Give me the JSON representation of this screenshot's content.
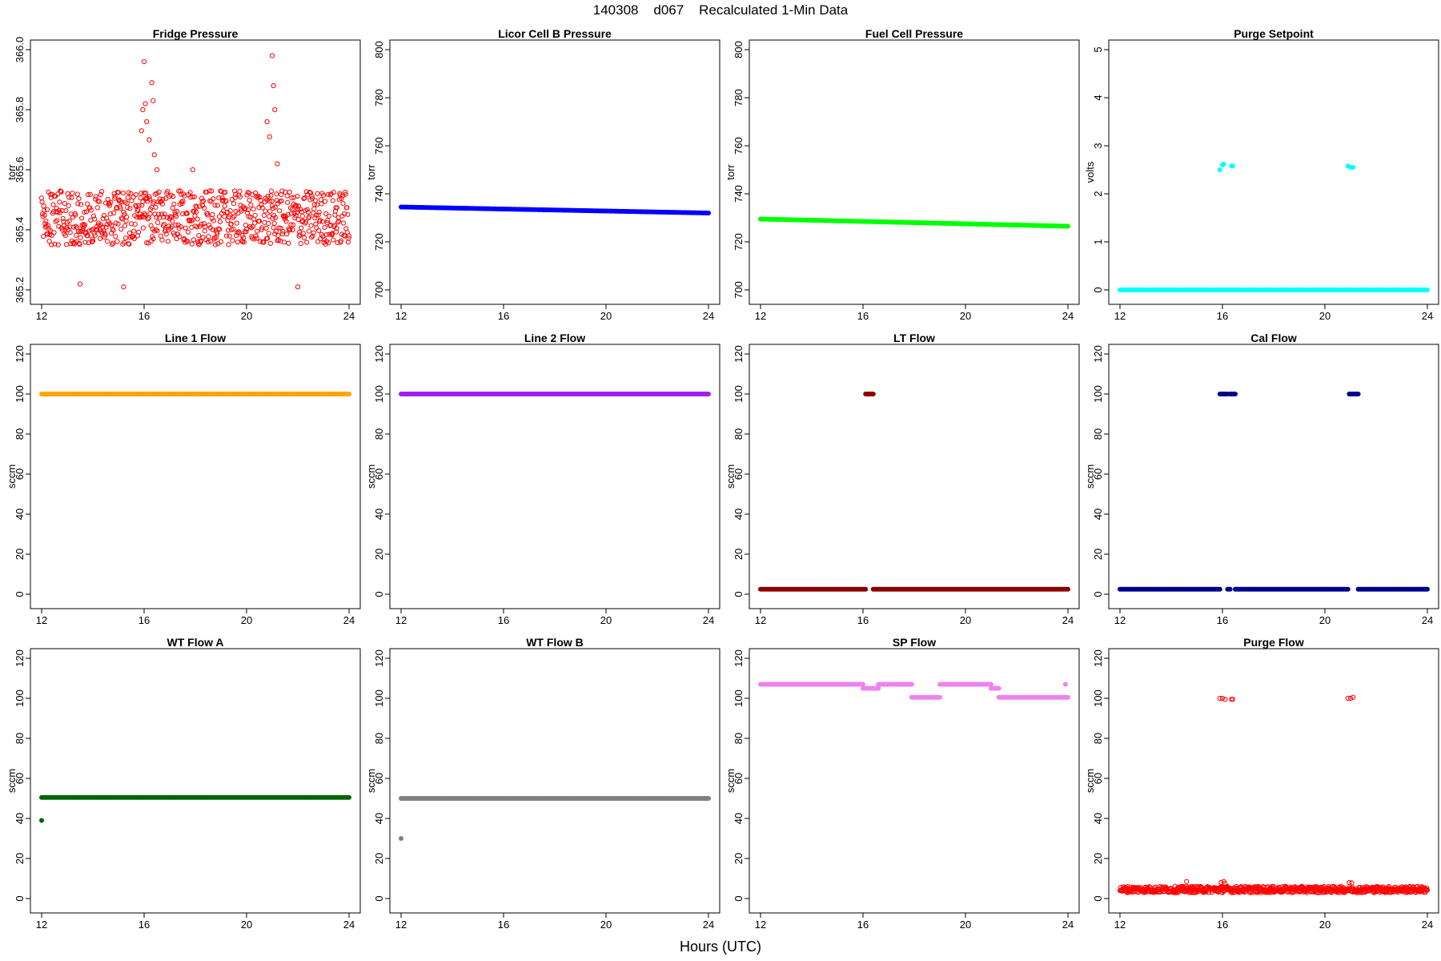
{
  "figure": {
    "title": "140308    d067    Recalculated 1-Min Data",
    "xlabel": "Hours (UTC)"
  },
  "chart_data": [
    {
      "type": "scatter",
      "title": "Fridge Pressure",
      "ylabel": "torr",
      "color": "#ff0000",
      "marker": "open-circle",
      "xlim": [
        12,
        24
      ],
      "xticks": [
        12,
        16,
        20,
        24
      ],
      "ylim": [
        365.2,
        366.0
      ],
      "yticks": [
        365.2,
        365.4,
        365.6,
        365.8,
        366.0
      ],
      "ytick_labels": [
        "365.2",
        "365.4",
        "365.6",
        "365.8",
        "366.0"
      ],
      "series": [
        {
          "segments": [
            {
              "x0": 12.0,
              "x1": 24.0,
              "y": 365.44,
              "noise": 0.09
            }
          ],
          "points": [
            [
              15.9,
              365.73
            ],
            [
              15.95,
              365.8
            ],
            [
              16.0,
              365.96
            ],
            [
              16.05,
              365.82
            ],
            [
              16.1,
              365.76
            ],
            [
              16.2,
              365.7
            ],
            [
              16.3,
              365.89
            ],
            [
              16.35,
              365.83
            ],
            [
              16.4,
              365.65
            ],
            [
              16.5,
              365.6
            ],
            [
              20.8,
              365.76
            ],
            [
              20.9,
              365.71
            ],
            [
              21.0,
              365.98
            ],
            [
              21.05,
              365.88
            ],
            [
              21.1,
              365.8
            ],
            [
              21.2,
              365.62
            ],
            [
              17.9,
              365.6
            ],
            [
              13.5,
              365.22
            ],
            [
              15.2,
              365.21
            ],
            [
              22.0,
              365.21
            ]
          ]
        }
      ]
    },
    {
      "type": "scatter",
      "title": "Licor Cell B Pressure",
      "ylabel": "torr",
      "color": "#0000ff",
      "marker": "filled-band",
      "xlim": [
        12,
        24
      ],
      "xticks": [
        12,
        16,
        20,
        24
      ],
      "ylim": [
        700,
        800
      ],
      "yticks": [
        700,
        720,
        740,
        760,
        780,
        800
      ],
      "ytick_labels": [
        "700",
        "720",
        "740",
        "760",
        "780",
        "800"
      ],
      "series": [
        {
          "segments": [
            {
              "x0": 12.0,
              "x1": 24.0,
              "y0": 734.5,
              "y1": 732.0
            }
          ],
          "points": []
        }
      ]
    },
    {
      "type": "scatter",
      "title": "Fuel Cell Pressure",
      "ylabel": "torr",
      "color": "#00ff00",
      "marker": "filled-band",
      "xlim": [
        12,
        24
      ],
      "xticks": [
        12,
        16,
        20,
        24
      ],
      "ylim": [
        700,
        800
      ],
      "yticks": [
        700,
        720,
        740,
        760,
        780,
        800
      ],
      "ytick_labels": [
        "700",
        "720",
        "740",
        "760",
        "780",
        "800"
      ],
      "series": [
        {
          "segments": [
            {
              "x0": 12.0,
              "x1": 24.0,
              "y0": 729.5,
              "y1": 726.5
            }
          ],
          "points": []
        }
      ]
    },
    {
      "type": "scatter",
      "title": "Purge Setpoint",
      "ylabel": "volts",
      "color": "#00ffff",
      "marker": "filled-band",
      "xlim": [
        12,
        24
      ],
      "xticks": [
        12,
        16,
        20,
        24
      ],
      "ylim": [
        0,
        5
      ],
      "yticks": [
        0,
        1,
        2,
        3,
        4,
        5
      ],
      "ytick_labels": [
        "0",
        "1",
        "2",
        "3",
        "4",
        "5"
      ],
      "series": [
        {
          "segments": [
            {
              "x0": 12.0,
              "x1": 24.0,
              "y": 0.0
            }
          ],
          "points": [
            [
              15.9,
              2.5
            ],
            [
              16.0,
              2.6
            ],
            [
              16.05,
              2.62
            ],
            [
              16.35,
              2.58
            ],
            [
              16.4,
              2.58
            ],
            [
              20.9,
              2.58
            ],
            [
              21.0,
              2.55
            ],
            [
              21.1,
              2.55
            ]
          ]
        }
      ]
    },
    {
      "type": "scatter",
      "title": "Line 1 Flow",
      "ylabel": "sccm",
      "color": "#ffa500",
      "marker": "filled-band",
      "xlim": [
        12,
        24
      ],
      "xticks": [
        12,
        16,
        20,
        24
      ],
      "ylim": [
        0,
        120
      ],
      "yticks": [
        0,
        20,
        40,
        60,
        80,
        100,
        120
      ],
      "ytick_labels": [
        "0",
        "20",
        "40",
        "60",
        "80",
        "100",
        "120"
      ],
      "series": [
        {
          "segments": [
            {
              "x0": 12.0,
              "x1": 24.0,
              "y": 100.0
            }
          ],
          "points": []
        }
      ]
    },
    {
      "type": "scatter",
      "title": "Line 2 Flow",
      "ylabel": "sccm",
      "color": "#a020f0",
      "marker": "filled-band",
      "xlim": [
        12,
        24
      ],
      "xticks": [
        12,
        16,
        20,
        24
      ],
      "ylim": [
        0,
        120
      ],
      "yticks": [
        0,
        20,
        40,
        60,
        80,
        100,
        120
      ],
      "ytick_labels": [
        "0",
        "20",
        "40",
        "60",
        "80",
        "100",
        "120"
      ],
      "series": [
        {
          "segments": [
            {
              "x0": 12.0,
              "x1": 24.0,
              "y": 100.0
            }
          ],
          "points": []
        }
      ]
    },
    {
      "type": "scatter",
      "title": "LT Flow",
      "ylabel": "sccm",
      "color": "#8b0000",
      "marker": "filled-band",
      "xlim": [
        12,
        24
      ],
      "xticks": [
        12,
        16,
        20,
        24
      ],
      "ylim": [
        0,
        120
      ],
      "yticks": [
        0,
        20,
        40,
        60,
        80,
        100,
        120
      ],
      "ytick_labels": [
        "0",
        "20",
        "40",
        "60",
        "80",
        "100",
        "120"
      ],
      "series": [
        {
          "segments": [
            {
              "x0": 12.0,
              "x1": 16.1,
              "y": 2.5
            },
            {
              "x0": 16.4,
              "x1": 24.0,
              "y": 2.5
            },
            {
              "x0": 16.1,
              "x1": 16.4,
              "y": 100.0
            }
          ],
          "points": []
        }
      ]
    },
    {
      "type": "scatter",
      "title": "Cal Flow",
      "ylabel": "sccm",
      "color": "#00008b",
      "marker": "filled-band",
      "xlim": [
        12,
        24
      ],
      "xticks": [
        12,
        16,
        20,
        24
      ],
      "ylim": [
        0,
        120
      ],
      "yticks": [
        0,
        20,
        40,
        60,
        80,
        100,
        120
      ],
      "ytick_labels": [
        "0",
        "20",
        "40",
        "60",
        "80",
        "100",
        "120"
      ],
      "series": [
        {
          "segments": [
            {
              "x0": 12.0,
              "x1": 15.9,
              "y": 2.5
            },
            {
              "x0": 16.2,
              "x1": 16.3,
              "y": 2.5
            },
            {
              "x0": 16.5,
              "x1": 20.9,
              "y": 2.5
            },
            {
              "x0": 21.3,
              "x1": 24.0,
              "y": 2.5
            },
            {
              "x0": 15.9,
              "x1": 16.2,
              "y": 100.0
            },
            {
              "x0": 16.3,
              "x1": 16.5,
              "y": 100.0
            },
            {
              "x0": 20.95,
              "x1": 21.3,
              "y": 100.0
            }
          ],
          "points": []
        }
      ]
    },
    {
      "type": "scatter",
      "title": "WT Flow A",
      "ylabel": "sccm",
      "color": "#006400",
      "marker": "filled-band",
      "xlim": [
        12,
        24
      ],
      "xticks": [
        12,
        16,
        20,
        24
      ],
      "ylim": [
        0,
        120
      ],
      "yticks": [
        0,
        20,
        40,
        60,
        80,
        100,
        120
      ],
      "ytick_labels": [
        "0",
        "20",
        "40",
        "60",
        "80",
        "100",
        "120"
      ],
      "series": [
        {
          "segments": [
            {
              "x0": 12.0,
              "x1": 24.0,
              "y": 50.5
            }
          ],
          "points": [
            [
              12.0,
              39.0
            ]
          ]
        }
      ]
    },
    {
      "type": "scatter",
      "title": "WT Flow B",
      "ylabel": "sccm",
      "color": "#808080",
      "marker": "filled-band",
      "xlim": [
        12,
        24
      ],
      "xticks": [
        12,
        16,
        20,
        24
      ],
      "ylim": [
        0,
        120
      ],
      "yticks": [
        0,
        20,
        40,
        60,
        80,
        100,
        120
      ],
      "ytick_labels": [
        "0",
        "20",
        "40",
        "60",
        "80",
        "100",
        "120"
      ],
      "series": [
        {
          "segments": [
            {
              "x0": 12.0,
              "x1": 24.0,
              "y": 50.0
            }
          ],
          "points": [
            [
              12.0,
              30.0
            ]
          ]
        }
      ]
    },
    {
      "type": "scatter",
      "title": "SP Flow",
      "ylabel": "sccm",
      "color": "#ee82ee",
      "marker": "filled-band",
      "xlim": [
        12,
        24
      ],
      "xticks": [
        12,
        16,
        20,
        24
      ],
      "ylim": [
        0,
        120
      ],
      "yticks": [
        0,
        20,
        40,
        60,
        80,
        100,
        120
      ],
      "ytick_labels": [
        "0",
        "20",
        "40",
        "60",
        "80",
        "100",
        "120"
      ],
      "series": [
        {
          "segments": [
            {
              "x0": 12.0,
              "x1": 16.0,
              "y": 107.0
            },
            {
              "x0": 16.0,
              "x1": 16.6,
              "y": 105.0
            },
            {
              "x0": 16.6,
              "x1": 17.9,
              "y": 107.0
            },
            {
              "x0": 17.9,
              "x1": 19.0,
              "y": 100.5
            },
            {
              "x0": 19.0,
              "x1": 21.0,
              "y": 107.0
            },
            {
              "x0": 21.0,
              "x1": 21.3,
              "y": 105.0
            },
            {
              "x0": 21.3,
              "x1": 24.0,
              "y": 100.5
            }
          ],
          "points": [
            [
              23.9,
              107.0
            ]
          ]
        }
      ]
    },
    {
      "type": "scatter",
      "title": "Purge Flow",
      "ylabel": "sccm",
      "color": "#ff0000",
      "marker": "open-circle",
      "xlim": [
        12,
        24
      ],
      "xticks": [
        12,
        16,
        20,
        24
      ],
      "ylim": [
        0,
        120
      ],
      "yticks": [
        0,
        20,
        40,
        60,
        80,
        100,
        120
      ],
      "ytick_labels": [
        "0",
        "20",
        "40",
        "60",
        "80",
        "100",
        "120"
      ],
      "series": [
        {
          "segments": [
            {
              "x0": 12.0,
              "x1": 24.0,
              "y": 4.5,
              "noise": 1.6
            }
          ],
          "points": [
            [
              15.9,
              100.0
            ],
            [
              16.0,
              100.0
            ],
            [
              16.1,
              99.5
            ],
            [
              16.35,
              99.5
            ],
            [
              16.4,
              99.5
            ],
            [
              20.9,
              100.0
            ],
            [
              21.0,
              100.0
            ],
            [
              21.1,
              100.5
            ],
            [
              15.95,
              8.0
            ],
            [
              16.05,
              8.5
            ],
            [
              16.1,
              7.5
            ],
            [
              20.95,
              8.0
            ],
            [
              21.05,
              7.8
            ],
            [
              14.6,
              8.5
            ]
          ]
        }
      ]
    }
  ]
}
